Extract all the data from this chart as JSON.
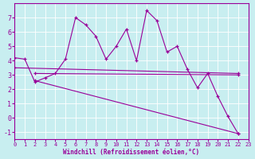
{
  "bg_color": "#c8eef0",
  "grid_color": "#ffffff",
  "line_color": "#990099",
  "xlabel": "Windchill (Refroidissement éolien,°C)",
  "xlim": [
    0,
    23
  ],
  "ylim": [
    -1.5,
    8.0
  ],
  "yticks": [
    -1,
    0,
    1,
    2,
    3,
    4,
    5,
    6,
    7
  ],
  "xticks": [
    0,
    1,
    2,
    3,
    4,
    5,
    6,
    7,
    8,
    9,
    10,
    11,
    12,
    13,
    14,
    15,
    16,
    17,
    18,
    19,
    20,
    21,
    22,
    23
  ],
  "series1_x": [
    0,
    1,
    2,
    3,
    4,
    5,
    6,
    7,
    8,
    9,
    10,
    11,
    12,
    13,
    14,
    15,
    16,
    17,
    18,
    19,
    20,
    21,
    22
  ],
  "series1_y": [
    4.2,
    4.1,
    2.5,
    2.8,
    3.1,
    4.1,
    7.0,
    6.5,
    5.7,
    4.1,
    5.0,
    6.2,
    4.0,
    7.5,
    6.8,
    4.6,
    5.0,
    3.4,
    2.1,
    3.1,
    1.5,
    0.1,
    -1.1
  ],
  "series2_x": [
    0,
    22
  ],
  "series2_y": [
    3.5,
    3.1
  ],
  "series3_x": [
    2,
    22
  ],
  "series3_y": [
    2.6,
    -1.1
  ],
  "series4_x": [
    2,
    22
  ],
  "series4_y": [
    3.1,
    3.0
  ],
  "marker_size": 3,
  "linewidth": 0.8,
  "tick_fontsize": 5,
  "xlabel_fontsize": 5.5
}
